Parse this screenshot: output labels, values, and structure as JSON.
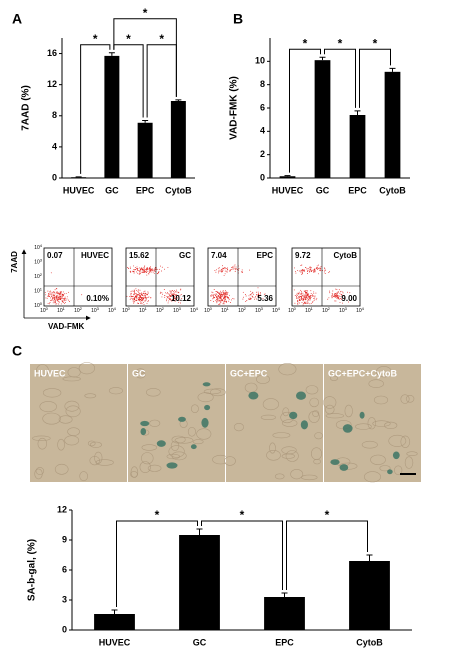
{
  "chart_data": [
    {
      "type": "bar",
      "panel_label": "A",
      "y_label": "7AAD (%)",
      "categories": [
        "HUVEC",
        "GC",
        "EPC",
        "CytoB"
      ],
      "values": [
        0.1,
        15.7,
        7.1,
        9.9
      ],
      "errors": [
        0.05,
        0.4,
        0.3,
        0.15
      ],
      "color": "#000000",
      "ylim": [
        0,
        18
      ],
      "yticks": [
        0,
        4,
        8,
        12,
        16
      ],
      "significance": [
        {
          "between": [
            0,
            1
          ],
          "label": "*"
        },
        {
          "between": [
            1,
            2
          ],
          "label": "*"
        },
        {
          "between": [
            2,
            3
          ],
          "label": "*"
        },
        {
          "between": [
            1,
            3
          ],
          "label": "*"
        }
      ]
    },
    {
      "type": "bar",
      "panel_label": "B",
      "y_label": "VAD-FMK (%)",
      "categories": [
        "HUVEC",
        "GC",
        "EPC",
        "CytoB"
      ],
      "values": [
        0.15,
        10.1,
        5.4,
        9.1
      ],
      "errors": [
        0.05,
        0.25,
        0.35,
        0.3
      ],
      "color": "#000000",
      "ylim": [
        0,
        12
      ],
      "yticks": [
        0,
        2,
        4,
        6,
        8,
        10
      ],
      "significance": [
        {
          "between": [
            0,
            1
          ],
          "label": "*"
        },
        {
          "between": [
            1,
            2
          ],
          "label": "*"
        },
        {
          "between": [
            2,
            3
          ],
          "label": "*"
        }
      ]
    },
    {
      "type": "bar",
      "y_label": "SA-b-gal, (%)",
      "categories": [
        "HUVEC",
        "GC",
        "EPC",
        "CytoB"
      ],
      "values": [
        1.6,
        9.5,
        3.3,
        6.9
      ],
      "errors": [
        0.4,
        0.6,
        0.4,
        0.6
      ],
      "color": "#000000",
      "ylim": [
        0,
        12
      ],
      "yticks": [
        0,
        3,
        6,
        9,
        12
      ],
      "significance": [
        {
          "between": [
            0,
            1
          ],
          "label": "*"
        },
        {
          "between": [
            1,
            2
          ],
          "label": "*"
        },
        {
          "between": [
            2,
            3
          ],
          "label": "*"
        }
      ]
    }
  ],
  "flow": {
    "y_label": "7AAD",
    "x_label": "VAD-FMK",
    "ticks": [
      {
        "base": "10",
        "exp": "0"
      },
      {
        "base": "10",
        "exp": "1"
      },
      {
        "base": "10",
        "exp": "2"
      },
      {
        "base": "10",
        "exp": "3"
      },
      {
        "base": "10",
        "exp": "4"
      }
    ],
    "panels": [
      {
        "name": "HUVEC",
        "upper_left": "0.07",
        "lower_right": "0.10%"
      },
      {
        "name": "GC",
        "upper_left": "15.62",
        "lower_right": "10.12"
      },
      {
        "name": "EPC",
        "upper_left": "7.04",
        "lower_right": "5.36"
      },
      {
        "name": "CytoB",
        "upper_left": "9.72",
        "lower_right": "9.00"
      }
    ]
  },
  "micrographs": {
    "panel_label": "C",
    "labels": [
      "HUVEC",
      "GC",
      "GC+EPC",
      "GC+EPC+CytoB"
    ]
  }
}
